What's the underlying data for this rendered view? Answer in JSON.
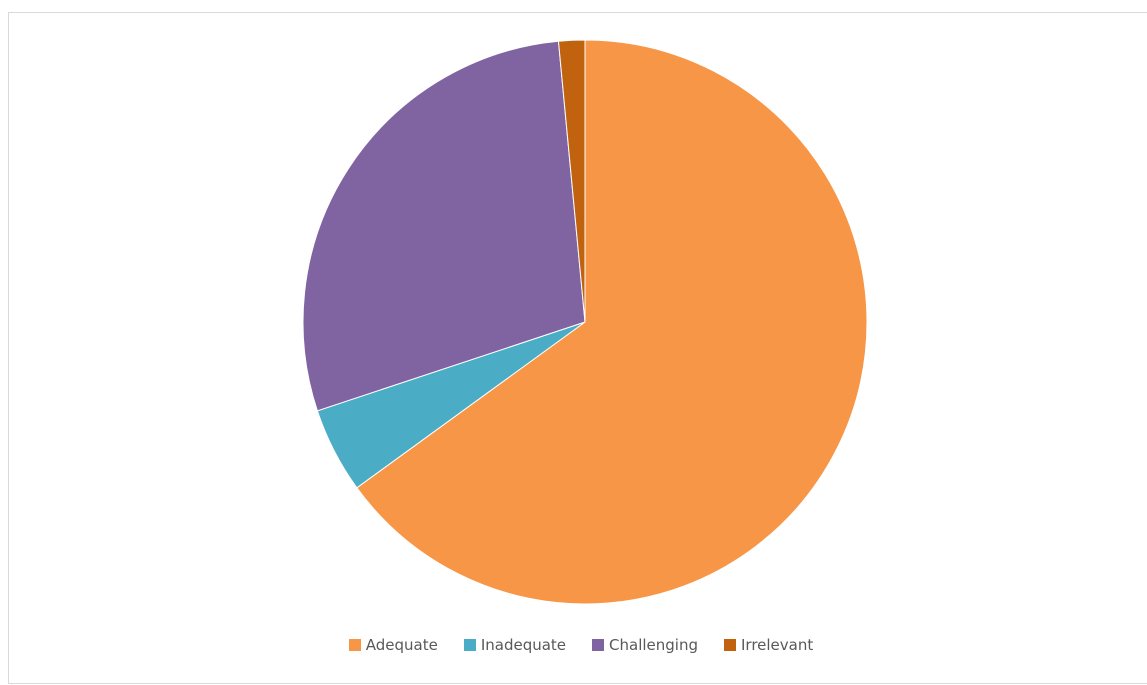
{
  "chart_data": {
    "type": "pie",
    "title": "",
    "categories": [
      "Adequate",
      "Inadequate",
      "Challenging",
      "Irrelevant"
    ],
    "values": [
      65.0,
      4.9,
      28.6,
      1.5
    ],
    "colors": [
      "#F79646",
      "#4BACC6",
      "#8064A2",
      "#C0620E"
    ],
    "start_angle_deg": 0,
    "direction": "clockwise",
    "legend_position": "bottom"
  }
}
